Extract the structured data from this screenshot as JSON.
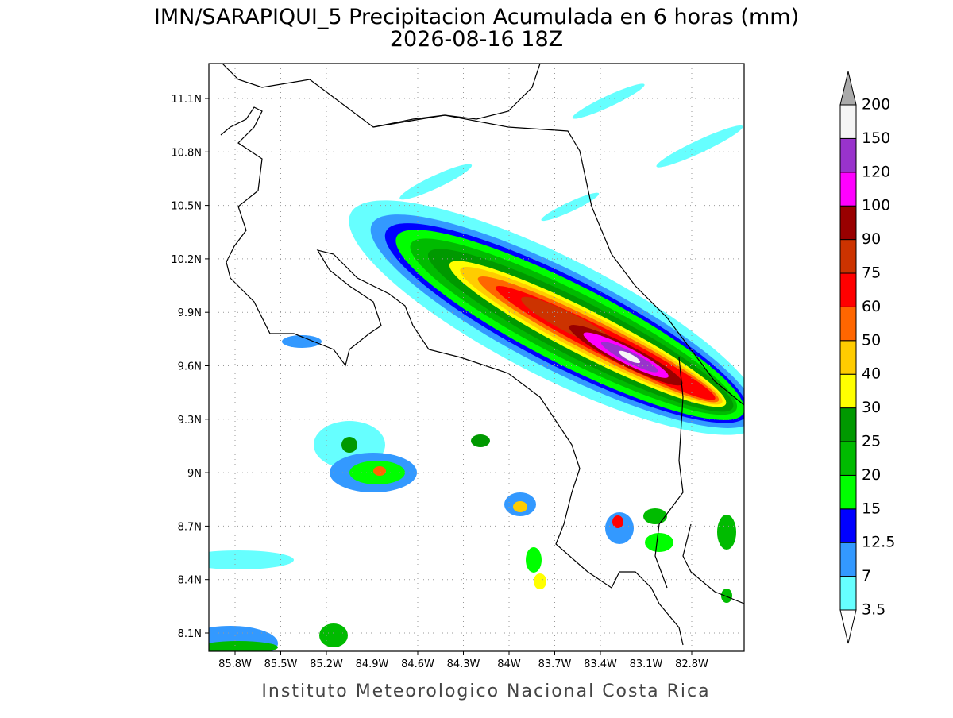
{
  "title": "IMN/SARAPIQUI_5 Precipitacion Acumulada en 6 horas (mm)",
  "subtitle": "2026-08-16 18Z",
  "lon_ticks": [
    "85.8W",
    "85.5W",
    "85.2W",
    "84.9W",
    "84.6W",
    "84.3W",
    "84W",
    "83.7W",
    "83.4W",
    "83.1W",
    "82.8W"
  ],
  "lat_ticks": [
    "11.1N",
    "10.8N",
    "10.5N",
    "10.2N",
    "9.9N",
    "9.6N",
    "9.3N",
    "9N",
    "8.7N",
    "8.4N",
    "8.1N"
  ],
  "colorbar": {
    "levels": [
      3.5,
      7,
      12.5,
      15,
      20,
      25,
      30,
      40,
      50,
      60,
      75,
      90,
      100,
      120,
      150,
      200
    ],
    "colors": [
      "#66ffff",
      "#3399ff",
      "#0000ff",
      "#00ff00",
      "#00bb00",
      "#009900",
      "#ffff00",
      "#ffcc00",
      "#ff6600",
      "#ff0000",
      "#cc3300",
      "#990000",
      "#ff00ff",
      "#9933cc",
      "#f5f5f5"
    ],
    "over_color": "#aaaaaa",
    "under_color": "#ffffff"
  },
  "footer": "Instituto Meteorologico Nacional Costa Rica"
}
